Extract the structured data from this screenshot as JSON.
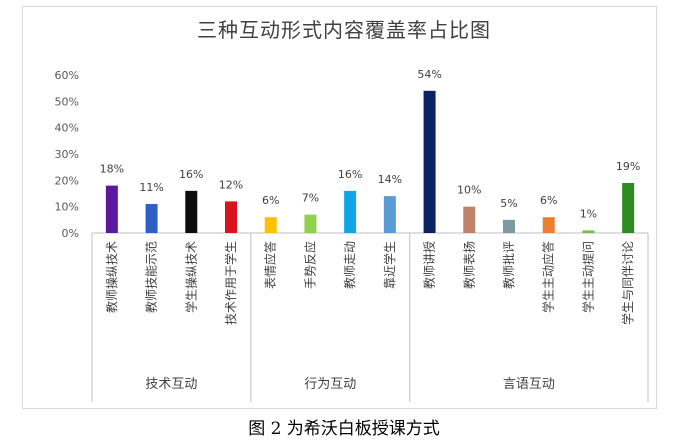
{
  "chart_data": {
    "type": "bar",
    "title": "三种互动形式内容覆盖率占比图",
    "xlabel": "",
    "ylabel": "",
    "ylim": [
      0,
      60
    ],
    "yticks": [
      "0%",
      "10%",
      "20%",
      "30%",
      "40%",
      "50%",
      "60%"
    ],
    "grid": false,
    "legend": "none",
    "categories": [
      "教师操纵技术",
      "教师技能示范",
      "学生操纵技术",
      "技术作用于学生",
      "表情应答",
      "手势反应",
      "教师走动",
      "靠近学生",
      "教师讲授",
      "教师表扬",
      "教师批评",
      "学生主动应答",
      "学生主动提问",
      "学生与同伴讨论"
    ],
    "values": [
      18,
      11,
      16,
      12,
      6,
      7,
      16,
      14,
      54,
      10,
      5,
      6,
      1,
      19
    ],
    "value_labels": [
      "18%",
      "11%",
      "16%",
      "12%",
      "6%",
      "7%",
      "16%",
      "14%",
      "54%",
      "10%",
      "5%",
      "6%",
      "1%",
      "19%"
    ],
    "colors": [
      "#5b1a9e",
      "#2f5fc4",
      "#0d0d0d",
      "#d9141e",
      "#ffc000",
      "#92d050",
      "#12a3e8",
      "#5b9bd5",
      "#0b2263",
      "#c0836a",
      "#7e9aa1",
      "#ed7d31",
      "#70c050",
      "#2e8b22"
    ],
    "groups": [
      {
        "label": "技术互动",
        "start": 0,
        "end": 3
      },
      {
        "label": "行为互动",
        "start": 4,
        "end": 7
      },
      {
        "label": "言语互动",
        "start": 8,
        "end": 13
      }
    ]
  },
  "caption": "图 2 为希沃白板授课方式"
}
